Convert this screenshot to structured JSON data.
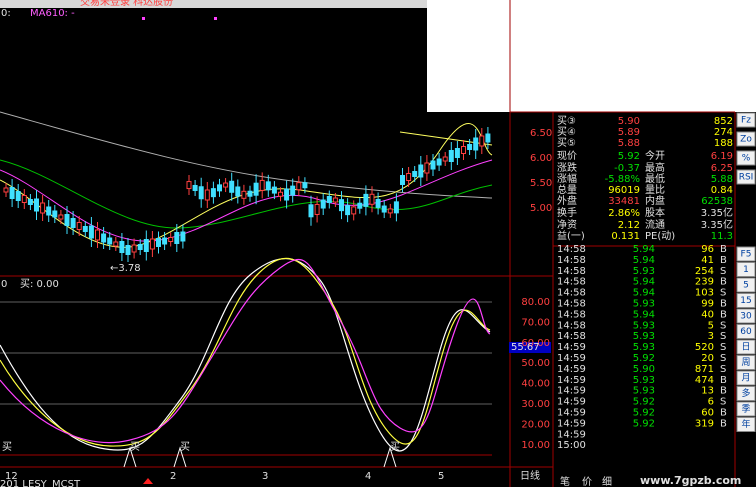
{
  "title_bar": "交易未登录 科达股份",
  "main_chart": {
    "legend_prefix": "0:",
    "legend": "MA610: -",
    "price_ticks": [
      "6.50",
      "6.00",
      "5.50",
      "5.00"
    ],
    "low_marker": "←3.78"
  },
  "indicator": {
    "name": "0",
    "buy": "买: 0.00",
    "ticks": [
      "80.00",
      "70.00",
      "60.00",
      "50.00",
      "40.00",
      "30.00",
      "20.00",
      "10.00"
    ],
    "current": "55.67",
    "signals": [
      "买",
      "买",
      "买",
      "买"
    ]
  },
  "x_axis": [
    "12",
    "2",
    "3",
    "4",
    "5"
  ],
  "period": "日线",
  "tabs": [
    "201 L",
    "ESY",
    "MCST"
  ],
  "quote": {
    "rows": [
      [
        "买③",
        "5.90",
        "852"
      ],
      [
        "买④",
        "5.89",
        "274"
      ],
      [
        "买⑤",
        "5.88",
        "188"
      ],
      [
        "现价",
        "5.92",
        "今开",
        "6.19"
      ],
      [
        "涨跌",
        "-0.37",
        "最高",
        "6.25"
      ],
      [
        "涨幅",
        "-5.88%",
        "最低",
        "5.88"
      ],
      [
        "总量",
        "96019",
        "量比",
        "0.84"
      ],
      [
        "外盘",
        "33481",
        "内盘",
        "62538"
      ],
      [
        "换手",
        "2.86%",
        "股本",
        "3.35亿"
      ],
      [
        "净资",
        "2.12",
        "流通",
        "3.35亿"
      ],
      [
        "益(一)",
        "0.131",
        "PE(动)",
        "11.3"
      ]
    ]
  },
  "trades": [
    [
      "14:58",
      "5.94",
      "96",
      "B"
    ],
    [
      "14:58",
      "5.94",
      "41",
      "B"
    ],
    [
      "14:58",
      "5.93",
      "254",
      "S"
    ],
    [
      "14:58",
      "5.94",
      "239",
      "B"
    ],
    [
      "14:58",
      "5.94",
      "103",
      "S"
    ],
    [
      "14:58",
      "5.93",
      "99",
      "B"
    ],
    [
      "14:58",
      "5.94",
      "40",
      "B"
    ],
    [
      "14:58",
      "5.93",
      "5",
      "S"
    ],
    [
      "14:58",
      "5.93",
      "3",
      "S"
    ],
    [
      "14:59",
      "5.93",
      "520",
      "S"
    ],
    [
      "14:59",
      "5.92",
      "20",
      "S"
    ],
    [
      "14:59",
      "5.90",
      "871",
      "S"
    ],
    [
      "14:59",
      "5.93",
      "474",
      "B"
    ],
    [
      "14:59",
      "5.93",
      "13",
      "B"
    ],
    [
      "14:59",
      "5.92",
      "6",
      "S"
    ],
    [
      "14:59",
      "5.92",
      "60",
      "B"
    ],
    [
      "14:59",
      "5.92",
      "319",
      "B"
    ],
    [
      "14:59"
    ],
    [
      "15:00"
    ]
  ],
  "side_tabs": [
    "笔",
    "价",
    "细"
  ],
  "toolbar": [
    "Fz",
    "Zo",
    "%",
    "RSI",
    "F5",
    "1",
    "5",
    "15",
    "30",
    "60",
    "日",
    "周",
    "月",
    "多",
    "季",
    "年"
  ],
  "watermark": "www.7gpzb.com"
}
